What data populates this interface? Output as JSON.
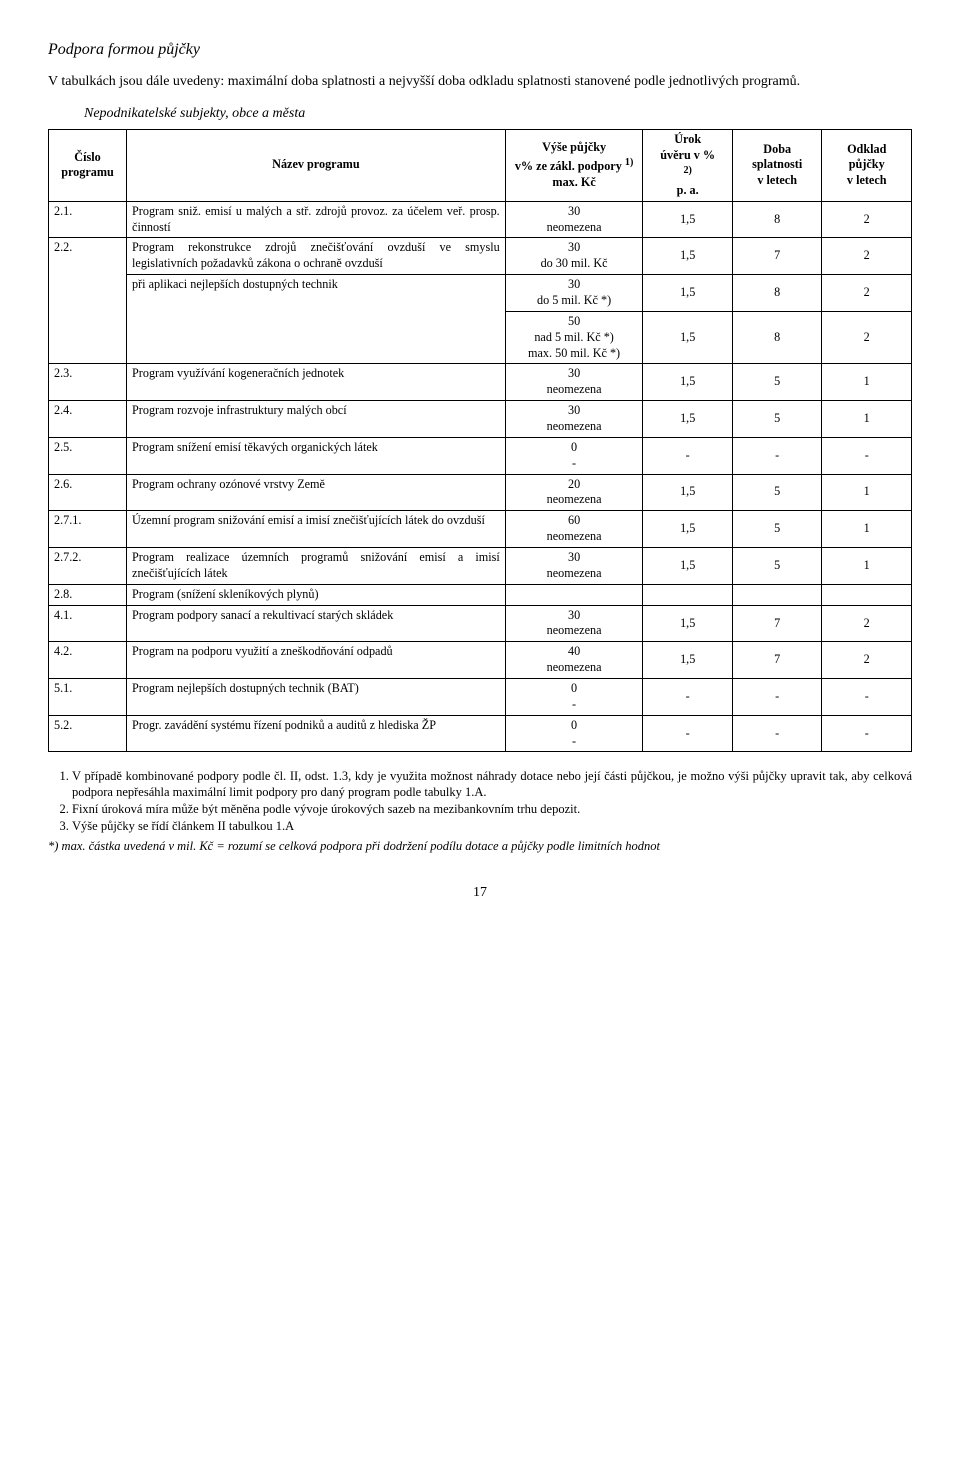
{
  "title": "Podpora formou půjčky",
  "lead": "V tabulkách jsou dále uvedeny: maximální doba splatnosti a nejvyšší doba odkladu splatnosti stanovené podle jednotlivých programů.",
  "subTitle": "Nepodnikatelské subjekty, obce a města",
  "headers": {
    "col1": "Číslo programu",
    "col2": "Název programu",
    "col3a": "Výše půjčky",
    "col3b": "v% ze zákl. podpory ",
    "col3sup": "1)",
    "col3c": "max. Kč",
    "col4a": "Úrok",
    "col4b": "úvěru v %",
    "col4sup": "2)",
    "col4c": "p. a.",
    "col5a": "Doba",
    "col5b": "splatnosti",
    "col5c": "v letech",
    "col6a": "Odklad",
    "col6b": "půjčky",
    "col6c": "v letech"
  },
  "rows": {
    "r21": {
      "num": "2.1.",
      "name": "Program sniž. emisí u malých a stř. zdrojů provoz. za účelem veř. prosp. činností",
      "vyseTop": "30",
      "vyseBot": "neomezena",
      "urok": "1,5",
      "doba": "8",
      "odklad": "2"
    },
    "r22a": {
      "num": "2.2.",
      "name": "Program rekonstrukce zdrojů znečišťování ovzduší ve smyslu legislativních požadavků zákona o ochraně ovzduší",
      "vyseTop": "30",
      "vyseBot": "do 30 mil. Kč",
      "urok": "1,5",
      "doba": "7",
      "odklad": "2"
    },
    "r22b": {
      "name": "při aplikaci nejlepších dostupných technik",
      "vyseTop": "30",
      "vyseBot": "do 5 mil. Kč *)",
      "urok": "1,5",
      "doba": "8",
      "odklad": "2"
    },
    "r22c": {
      "vyseTop": "50",
      "vyseMid": "nad 5 mil. Kč *)",
      "vyseBot": "max. 50 mil. Kč *)",
      "urok": "1,5",
      "doba": "8",
      "odklad": "2"
    },
    "r23": {
      "num": "2.3.",
      "name": "Program využívání kogeneračních jednotek",
      "vyseTop": "30",
      "vyseBot": "neomezena",
      "urok": "1,5",
      "doba": "5",
      "odklad": "1"
    },
    "r24": {
      "num": "2.4.",
      "name": "Program rozvoje infrastruktury malých obcí",
      "vyseTop": "30",
      "vyseBot": "neomezena",
      "urok": "1,5",
      "doba": "5",
      "odklad": "1"
    },
    "r25": {
      "num": "2.5.",
      "name": "Program snížení emisí těkavých organických látek",
      "vyseTop": "0",
      "vyseBot": "-",
      "urok": "-",
      "doba": "-",
      "odklad": "-"
    },
    "r26": {
      "num": "2.6.",
      "name": "Program ochrany ozónové vrstvy Země",
      "vyseTop": "20",
      "vyseBot": "neomezena",
      "urok": "1,5",
      "doba": "5",
      "odklad": "1"
    },
    "r271": {
      "num": "2.7.1.",
      "name": "Územní program snižování emisí a imisí znečišťujících látek do ovzduší",
      "vyseTop": "60",
      "vyseBot": "neomezena",
      "urok": "1,5",
      "doba": "5",
      "odklad": "1"
    },
    "r272": {
      "num": "2.7.2.",
      "name": "Program realizace územních programů snižování emisí a imisí znečišťujících látek",
      "vyseTop": "30",
      "vyseBot": "neomezena",
      "urok": "1,5",
      "doba": "5",
      "odklad": "1"
    },
    "r28": {
      "num": "2.8.",
      "name": "Program (snížení skleníkových plynů)"
    },
    "r41": {
      "num": "4.1.",
      "name": "Program podpory sanací a rekultivací starých skládek",
      "vyseTop": "30",
      "vyseBot": "neomezena",
      "urok": "1,5",
      "doba": "7",
      "odklad": "2"
    },
    "r42": {
      "num": "4.2.",
      "name": "Program na podporu využití a zneškodňování odpadů",
      "vyseTop": "40",
      "vyseBot": "neomezena",
      "urok": "1,5",
      "doba": "7",
      "odklad": "2"
    },
    "r51": {
      "num": "5.1.",
      "name": "Program nejlepších dostupných technik (BAT)",
      "vyseTop": "0",
      "vyseBot": "-",
      "urok": "-",
      "doba": "-",
      "odklad": "-"
    },
    "r52": {
      "num": "5.2.",
      "name": "Progr. zavádění systému řízení podniků a auditů z hlediska ŽP",
      "vyseTop": "0",
      "vyseBot": "-",
      "urok": "-",
      "doba": "-",
      "odklad": "-"
    }
  },
  "footnotes": {
    "f1": "V případě kombinované podpory podle čl. II, odst. 1.3, kdy je využita možnost náhrady dotace nebo její části půjčkou, je možno výši půjčky upravit tak, aby celková podpora nepřesáhla maximální limit podpory pro daný program podle tabulky 1.A.",
    "f2": "Fixní úroková míra může být měněna podle vývoje úrokových sazeb na mezibankovním trhu depozit.",
    "f3": "Výše půjčky se řídí článkem II tabulkou 1.A",
    "last": "*) max. částka uvedená v mil. Kč = rozumí se celková podpora při dodržení podílu dotace a půjčky podle limitních hodnot"
  },
  "pageNum": "17"
}
